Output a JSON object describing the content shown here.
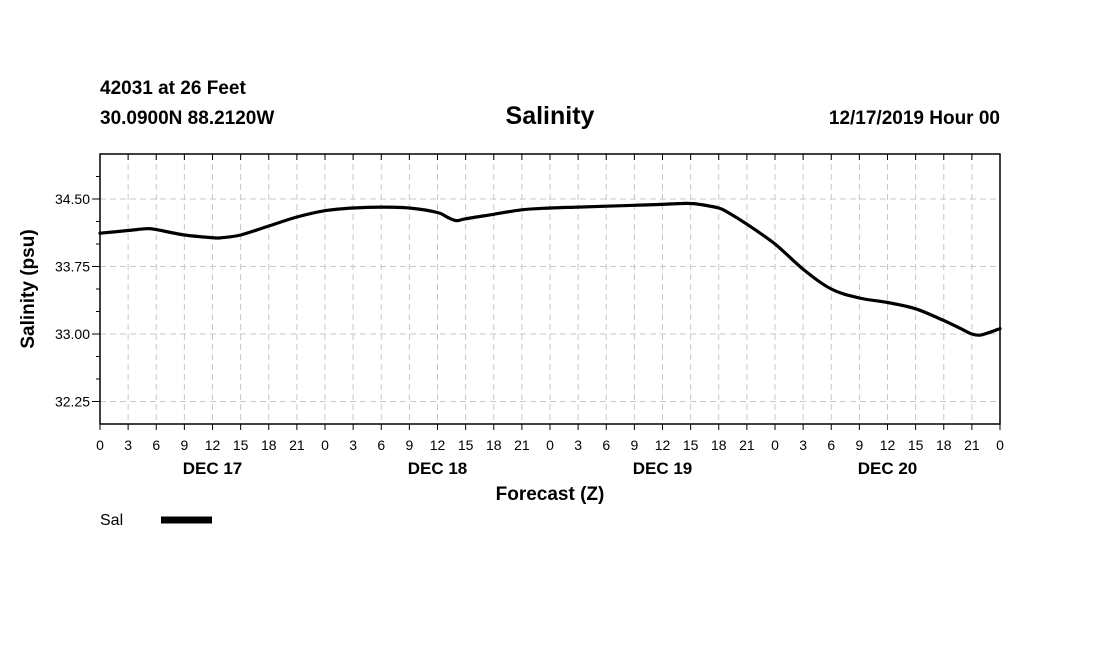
{
  "header": {
    "station": "42031 at 26 Feet",
    "coords": "30.0900N 88.2120W",
    "datetime": "12/17/2019 Hour 00"
  },
  "chart_data": {
    "type": "line",
    "title": "Salinity",
    "xlabel": "Forecast (Z)",
    "ylabel": "Salinity (psu)",
    "xlim": [
      0,
      96
    ],
    "ylim": [
      32.0,
      35.0
    ],
    "yticks": [
      32.25,
      33.0,
      33.75,
      34.5
    ],
    "ytick_labels": [
      "32.25",
      "33.00",
      "33.75",
      "34.50"
    ],
    "xticks": [
      0,
      3,
      6,
      9,
      12,
      15,
      18,
      21,
      24,
      27,
      30,
      33,
      36,
      39,
      42,
      45,
      48,
      51,
      54,
      57,
      60,
      63,
      66,
      69,
      72,
      75,
      78,
      81,
      84,
      87,
      90,
      93,
      96
    ],
    "xtick_labels": [
      "0",
      "3",
      "6",
      "9",
      "12",
      "15",
      "18",
      "21",
      "0",
      "3",
      "6",
      "9",
      "12",
      "15",
      "18",
      "21",
      "0",
      "3",
      "6",
      "9",
      "12",
      "15",
      "18",
      "21",
      "0",
      "3",
      "6",
      "9",
      "12",
      "15",
      "18",
      "21",
      "0"
    ],
    "day_labels": [
      {
        "label": "DEC 17",
        "hour": 12
      },
      {
        "label": "DEC 18",
        "hour": 36
      },
      {
        "label": "DEC 19",
        "hour": 60
      },
      {
        "label": "DEC 20",
        "hour": 84
      }
    ],
    "grid": true,
    "legend_position": "bottom-left",
    "series": [
      {
        "name": "Sal",
        "color": "#000000",
        "x": [
          0,
          3,
          5,
          6,
          9,
          12,
          13,
          15,
          18,
          21,
          24,
          27,
          30,
          33,
          36,
          37,
          38,
          39,
          42,
          45,
          48,
          51,
          54,
          57,
          60,
          62,
          63,
          64,
          66,
          67,
          69,
          72,
          75,
          78,
          81,
          84,
          87,
          90,
          92,
          93,
          94,
          96
        ],
        "values": [
          34.12,
          34.15,
          34.17,
          34.16,
          34.1,
          34.07,
          34.07,
          34.1,
          34.2,
          34.3,
          34.37,
          34.4,
          34.41,
          34.4,
          34.35,
          34.3,
          34.26,
          34.28,
          34.33,
          34.38,
          34.4,
          34.41,
          34.42,
          34.43,
          34.44,
          34.45,
          34.45,
          34.44,
          34.4,
          34.35,
          34.22,
          34.0,
          33.72,
          33.5,
          33.4,
          33.35,
          33.28,
          33.15,
          33.05,
          33.0,
          32.99,
          33.06
        ]
      }
    ]
  }
}
